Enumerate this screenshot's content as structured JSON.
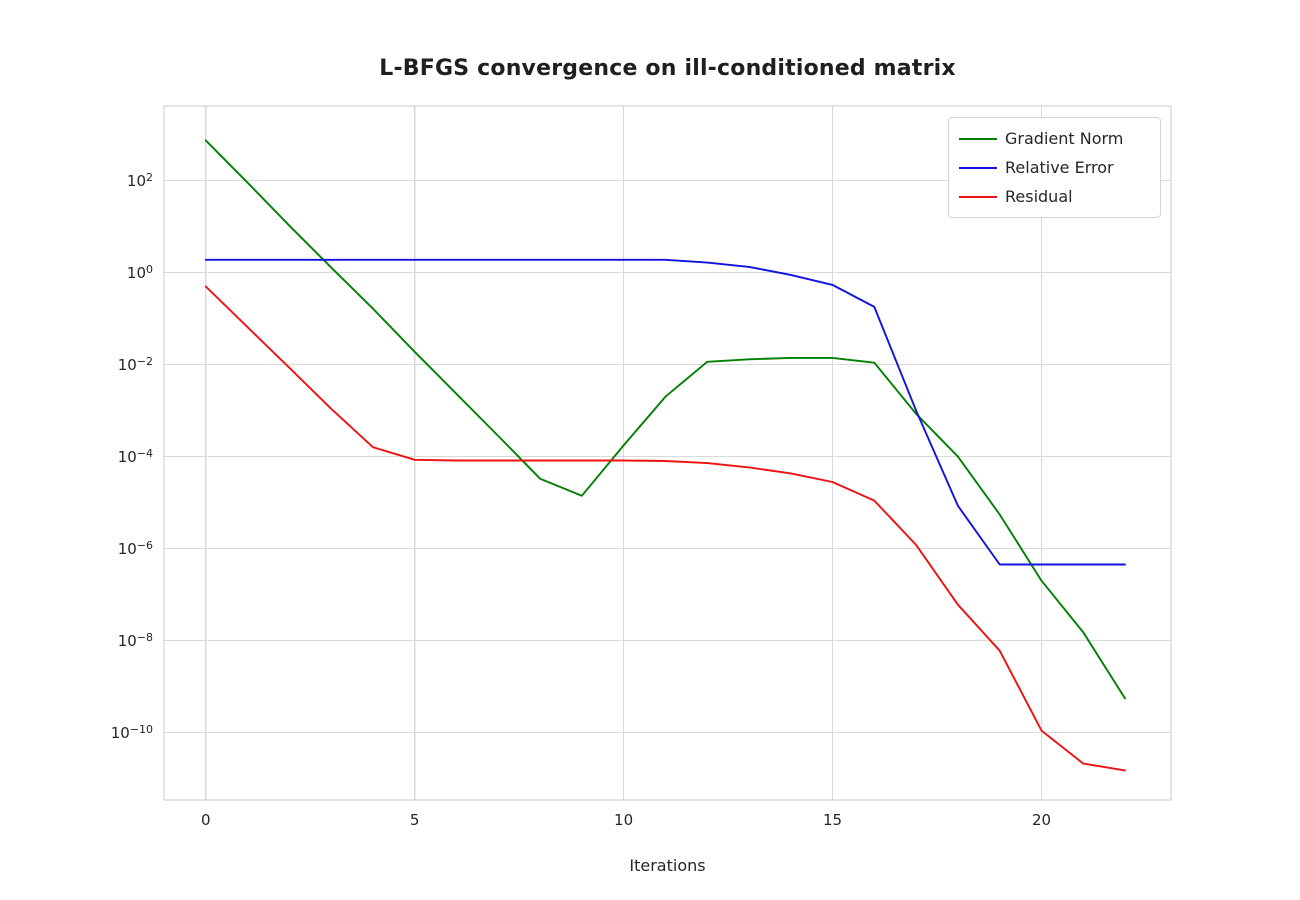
{
  "chart_data": {
    "type": "line",
    "title": "L-BFGS convergence on ill-conditioned matrix",
    "xlabel": "Iterations",
    "ylabel": "",
    "yscale": "log",
    "grid": true,
    "legend_position": "upper right",
    "xlim": [
      -1.0,
      23.1
    ],
    "ylim": [
      3.4e-12,
      4200.0
    ],
    "xticks": [
      0,
      5,
      10,
      15,
      20
    ],
    "ytick_exponents": [
      2,
      0,
      -2,
      -4,
      -6,
      -8,
      -10
    ],
    "x": [
      0,
      1,
      2,
      3,
      4,
      5,
      6,
      7,
      8,
      9,
      10,
      11,
      12,
      13,
      14,
      15,
      16,
      17,
      18,
      19,
      20,
      21,
      22
    ],
    "series": [
      {
        "name": "Gradient Norm",
        "color": "#008000",
        "values": [
          750,
          90,
          10.5,
          1.3,
          0.165,
          0.019,
          0.0023,
          0.00028,
          3.3e-05,
          1.4e-05,
          0.000175,
          0.002,
          0.0115,
          0.013,
          0.014,
          0.014,
          0.011,
          0.00085,
          0.0001,
          5.5e-06,
          2e-07,
          1.5e-08,
          5.5e-10
        ]
      },
      {
        "name": "Relative Error",
        "color": "#1111e0",
        "values": [
          1.9,
          1.9,
          1.9,
          1.9,
          1.9,
          1.9,
          1.9,
          1.9,
          1.9,
          1.9,
          1.9,
          1.9,
          1.65,
          1.33,
          0.89,
          0.54,
          0.18,
          0.001,
          8.5e-06,
          4.5e-07,
          4.5e-07,
          4.5e-07,
          4.5e-07
        ]
      },
      {
        "name": "Residual",
        "color": "#ee1111",
        "values": [
          0.5,
          0.065,
          0.0085,
          0.0011,
          0.00016,
          8.5e-05,
          8.2e-05,
          8.2e-05,
          8.2e-05,
          8.2e-05,
          8.2e-05,
          8e-05,
          7.2e-05,
          5.8e-05,
          4.3e-05,
          2.8e-05,
          1.1e-05,
          1.2e-06,
          6e-08,
          6e-09,
          1.1e-10,
          2.1e-11,
          1.5e-11
        ]
      }
    ],
    "colors": {
      "background": "#ffffff",
      "grid": "#d9d9d9",
      "spine": "#c9c9c9",
      "tick_text": "#262626",
      "title_text": "#1f1f1f"
    }
  }
}
